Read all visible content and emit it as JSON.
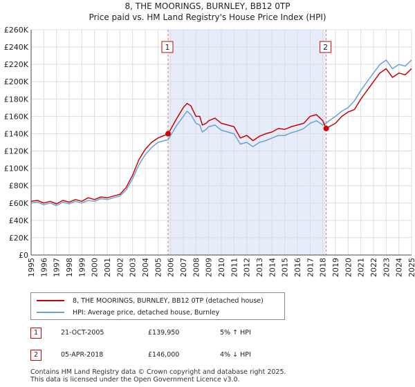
{
  "title_line1": "8, THE MOORINGS, BURNLEY, BB12 0TP",
  "title_line2": "Price paid vs. HM Land Registry's House Price Index (HPI)",
  "colors": {
    "property": "#cc0000",
    "hpi": "#6a9fd8",
    "shade": "#e6ecfa",
    "marker_line": "#e07070"
  },
  "chart_data": {
    "type": "line",
    "title": "Price paid vs. HM Land Registry's House Price Index (HPI)",
    "xlabel": "",
    "ylabel": "",
    "xlim": [
      1995,
      2025
    ],
    "ylim": [
      0,
      260000
    ],
    "grid": true,
    "x_ticks": [
      "1995",
      "1996",
      "1997",
      "1998",
      "1999",
      "2000",
      "2001",
      "2002",
      "2003",
      "2004",
      "2005",
      "2006",
      "2007",
      "2008",
      "2009",
      "2010",
      "2011",
      "2012",
      "2013",
      "2014",
      "2015",
      "2016",
      "2017",
      "2018",
      "2019",
      "2020",
      "2021",
      "2022",
      "2023",
      "2024",
      "2025"
    ],
    "y_ticks": [
      "£0",
      "£20K",
      "£40K",
      "£60K",
      "£80K",
      "£100K",
      "£120K",
      "£140K",
      "£160K",
      "£180K",
      "£200K",
      "£220K",
      "£240K",
      "£260K"
    ],
    "shaded_region": [
      2005.8,
      2018.27
    ],
    "series": [
      {
        "name": "8, THE MOORINGS, BURNLEY, BB12 0TP (detached house)",
        "x": [
          1995.0,
          1995.5,
          1996.0,
          1996.5,
          1997.0,
          1997.5,
          1998.0,
          1998.5,
          1999.0,
          1999.5,
          2000.0,
          2000.5,
          2001.0,
          2001.5,
          2002.0,
          2002.5,
          2003.0,
          2003.5,
          2004.0,
          2004.5,
          2005.0,
          2005.5,
          2005.8,
          2006.0,
          2006.5,
          2007.0,
          2007.3,
          2007.6,
          2008.0,
          2008.3,
          2008.5,
          2008.8,
          2009.0,
          2009.5,
          2010.0,
          2010.5,
          2011.0,
          2011.5,
          2012.0,
          2012.5,
          2013.0,
          2013.5,
          2014.0,
          2014.5,
          2015.0,
          2015.5,
          2016.0,
          2016.5,
          2017.0,
          2017.5,
          2018.0,
          2018.27,
          2018.5,
          2019.0,
          2019.5,
          2020.0,
          2020.5,
          2021.0,
          2021.5,
          2022.0,
          2022.5,
          2023.0,
          2023.5,
          2024.0,
          2024.5,
          2025.0
        ],
        "values": [
          62000,
          63000,
          60000,
          62000,
          59000,
          63000,
          61000,
          64000,
          62000,
          66000,
          64000,
          67000,
          66000,
          68000,
          70000,
          78000,
          92000,
          110000,
          122000,
          130000,
          135000,
          138000,
          139950,
          145000,
          158000,
          170000,
          175000,
          172000,
          160000,
          160000,
          150000,
          152000,
          155000,
          158000,
          152000,
          150000,
          148000,
          135000,
          138000,
          132000,
          137000,
          140000,
          142000,
          146000,
          145000,
          148000,
          150000,
          152000,
          160000,
          162000,
          155000,
          146000,
          148000,
          152000,
          160000,
          165000,
          168000,
          180000,
          190000,
          200000,
          210000,
          215000,
          205000,
          210000,
          208000,
          215000
        ]
      },
      {
        "name": "HPI: Average price, detached house, Burnley",
        "x": [
          1995.0,
          1995.5,
          1996.0,
          1996.5,
          1997.0,
          1997.5,
          1998.0,
          1998.5,
          1999.0,
          1999.5,
          2000.0,
          2000.5,
          2001.0,
          2001.5,
          2002.0,
          2002.5,
          2003.0,
          2003.5,
          2004.0,
          2004.5,
          2005.0,
          2005.5,
          2005.8,
          2006.0,
          2006.5,
          2007.0,
          2007.3,
          2007.6,
          2008.0,
          2008.3,
          2008.5,
          2008.8,
          2009.0,
          2009.5,
          2010.0,
          2010.5,
          2011.0,
          2011.5,
          2012.0,
          2012.5,
          2013.0,
          2013.5,
          2014.0,
          2014.5,
          2015.0,
          2015.5,
          2016.0,
          2016.5,
          2017.0,
          2017.5,
          2018.0,
          2018.27,
          2018.5,
          2019.0,
          2019.5,
          2020.0,
          2020.5,
          2021.0,
          2021.5,
          2022.0,
          2022.5,
          2023.0,
          2023.5,
          2024.0,
          2024.5,
          2025.0
        ],
        "values": [
          60000,
          61000,
          58000,
          60000,
          57000,
          61000,
          59000,
          62000,
          60000,
          63000,
          62000,
          65000,
          64000,
          66000,
          68000,
          75000,
          88000,
          104000,
          116000,
          124000,
          130000,
          132000,
          133000,
          138000,
          150000,
          160000,
          166000,
          162000,
          152000,
          150000,
          142000,
          145000,
          148000,
          150000,
          144000,
          142000,
          140000,
          128000,
          130000,
          125000,
          130000,
          132000,
          135000,
          138000,
          138000,
          141000,
          143000,
          146000,
          152000,
          155000,
          150000,
          152000,
          155000,
          160000,
          166000,
          170000,
          178000,
          190000,
          200000,
          210000,
          220000,
          225000,
          215000,
          220000,
          218000,
          225000
        ]
      }
    ],
    "sales": [
      {
        "id": "1",
        "x": 2005.8,
        "value": 139950
      },
      {
        "id": "2",
        "x": 2018.27,
        "value": 146000
      }
    ]
  },
  "legend": {
    "property_label": "8, THE MOORINGS, BURNLEY, BB12 0TP (detached house)",
    "hpi_label": "HPI: Average price, detached house, Burnley"
  },
  "transactions": [
    {
      "id": "1",
      "date": "21-OCT-2005",
      "price": "£139,950",
      "hpi": "5% ↑ HPI"
    },
    {
      "id": "2",
      "date": "05-APR-2018",
      "price": "£146,000",
      "hpi": "4% ↓ HPI"
    }
  ],
  "footer": {
    "line1": "Contains HM Land Registry data © Crown copyright and database right 2025.",
    "line2": "This data is licensed under the Open Government Licence v3.0."
  }
}
